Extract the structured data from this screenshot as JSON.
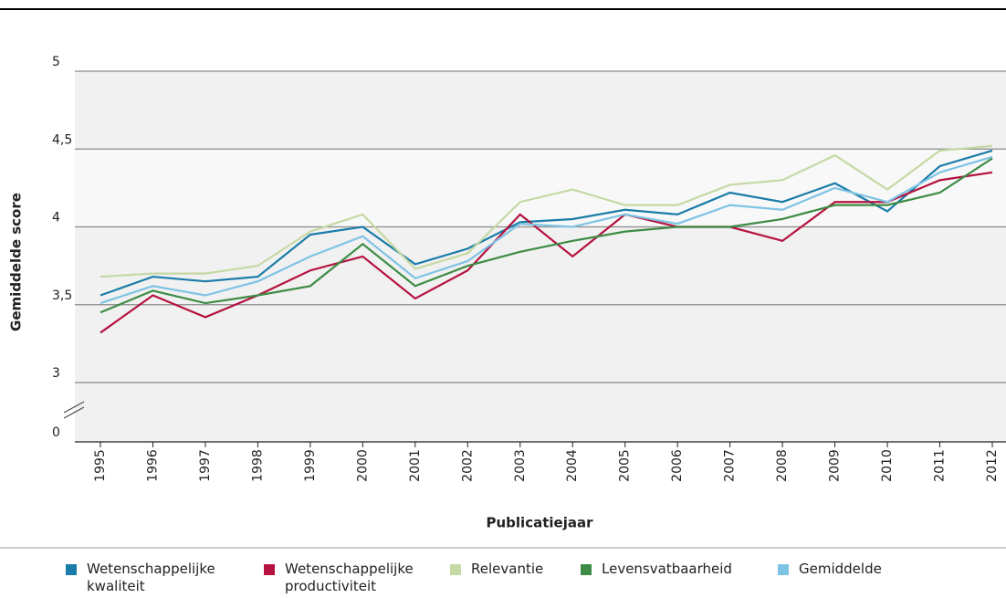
{
  "chart_data": {
    "type": "line",
    "x_label": "Publicatiejaar",
    "y_label": "Gemiddelde score",
    "categories": [
      "1995",
      "1996",
      "1997",
      "1998",
      "1999",
      "2000",
      "2001",
      "2002",
      "2003",
      "2004",
      "2005",
      "2006",
      "2007",
      "2008",
      "2009",
      "2010",
      "2011",
      "2012"
    ],
    "ylim": [
      0,
      5
    ],
    "y_break": [
      0,
      3
    ],
    "yticks": [
      {
        "value": 0,
        "label": "0"
      },
      {
        "value": 3,
        "label": "3"
      },
      {
        "value": 3.5,
        "label": "3,5"
      },
      {
        "value": 4,
        "label": "4"
      },
      {
        "value": 4.5,
        "label": "4,5"
      },
      {
        "value": 5,
        "label": "5"
      }
    ],
    "grid": true,
    "legend": "bottom",
    "series": [
      {
        "name": "Wetenschappelijke kwaliteit",
        "color": "#1a7ca8",
        "values": [
          3.56,
          3.68,
          3.65,
          3.68,
          3.95,
          4.0,
          3.76,
          3.86,
          4.03,
          4.05,
          4.11,
          4.08,
          4.22,
          4.16,
          4.28,
          4.1,
          4.39,
          4.49
        ]
      },
      {
        "name": "Wetenschappelijke productiviteit",
        "color": "#b5123f",
        "values": [
          3.32,
          3.56,
          3.42,
          3.56,
          3.72,
          3.81,
          3.54,
          3.72,
          4.08,
          3.81,
          4.08,
          4.0,
          4.0,
          3.91,
          4.16,
          4.16,
          4.3,
          4.35
        ]
      },
      {
        "name": "Relevantie",
        "color": "#c5d9a4",
        "values": [
          3.68,
          3.7,
          3.7,
          3.75,
          3.97,
          4.08,
          3.73,
          3.83,
          4.16,
          4.24,
          4.14,
          4.14,
          4.27,
          4.3,
          4.46,
          4.24,
          4.49,
          4.52
        ]
      },
      {
        "name": "Levensvatbaarheid",
        "color": "#3d8c45",
        "values": [
          3.45,
          3.59,
          3.51,
          3.56,
          3.62,
          3.89,
          3.62,
          3.75,
          3.84,
          3.91,
          3.97,
          4.0,
          4.0,
          4.05,
          4.14,
          4.14,
          4.22,
          4.44
        ]
      },
      {
        "name": "Gemiddelde",
        "color": "#7fc3e4",
        "values": [
          3.51,
          3.62,
          3.56,
          3.65,
          3.81,
          3.94,
          3.67,
          3.78,
          4.02,
          4.0,
          4.08,
          4.02,
          4.14,
          4.11,
          4.25,
          4.16,
          4.35,
          4.45
        ]
      }
    ]
  }
}
